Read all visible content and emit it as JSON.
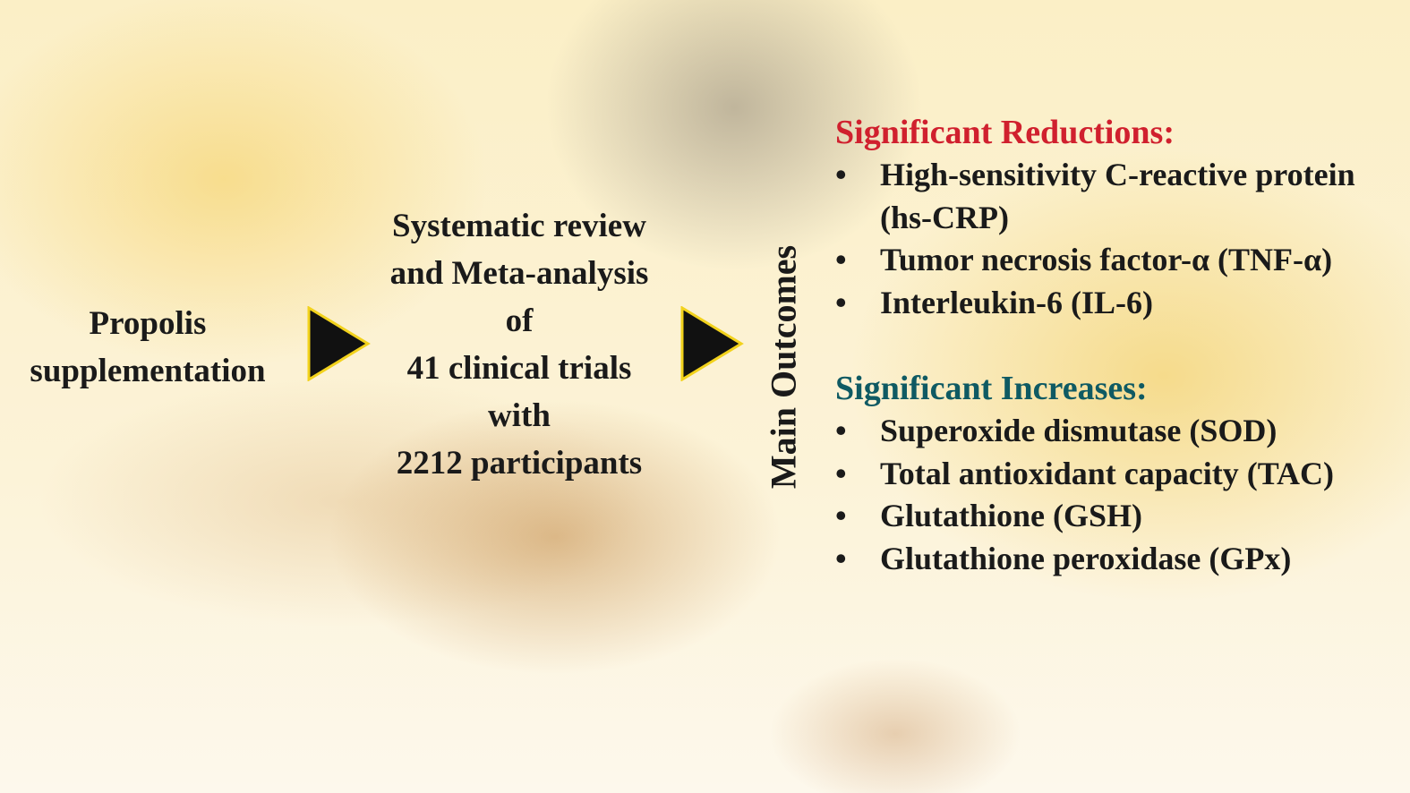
{
  "input": {
    "lines": [
      "Propolis",
      "supplementation"
    ]
  },
  "method": {
    "lines": [
      "Systematic review",
      "and Meta-analysis",
      "of",
      "41 clinical trials",
      "with",
      "2212 participants"
    ]
  },
  "outcomes_label": "Main Outcomes",
  "reductions": {
    "heading": "Significant Reductions:",
    "items": [
      [
        "High-sensitivity C-reactive protein",
        "(hs-CRP)"
      ],
      [
        "Tumor necrosis factor-α (TNF-α)"
      ],
      [
        "Interleukin-6 (IL-6)"
      ]
    ]
  },
  "increases": {
    "heading": "Significant Increases:",
    "items": [
      [
        "Superoxide dismutase (SOD)"
      ],
      [
        "Total antioxidant capacity (TAC)"
      ],
      [
        "Glutathione (GSH)"
      ],
      [
        "Glutathione peroxidase (GPx)"
      ]
    ]
  },
  "bullet": "•",
  "colors": {
    "reductions": "#d0202e",
    "increases": "#0f5a63",
    "arrow_fill": "#111111",
    "arrow_outline": "#f2d21c"
  }
}
